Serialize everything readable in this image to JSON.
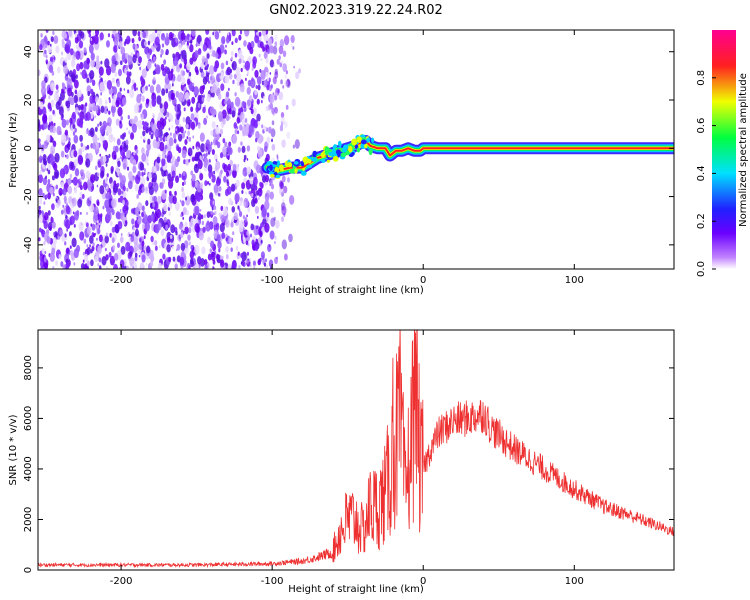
{
  "title": "GN02.2023.319.22.24.R02",
  "chart_data": [
    {
      "type": "heatmap",
      "name": "spectrogram",
      "xlabel": "Height of straight line (km)",
      "ylabel": "Frequency (Hz)",
      "xlim": [
        -255,
        166
      ],
      "ylim": [
        -50,
        49
      ],
      "xticks": [
        "-200",
        "-100",
        "0",
        "100"
      ],
      "yticks": [
        "-40",
        "-20",
        "0",
        "20",
        "40"
      ],
      "colorbar": {
        "label": "Normalized spectral amplitude",
        "range": [
          0,
          1
        ],
        "ticks": [
          "0.0",
          "0.2",
          "0.4",
          "0.6",
          "0.8"
        ],
        "colormap": [
          "#ffffff",
          "#8a00ff",
          "#2020ff",
          "#00e0ff",
          "#00ff40",
          "#f0ff00",
          "#ff2020",
          "#ff0090"
        ]
      },
      "noise_region_x": [
        -255,
        -80
      ],
      "signal_track": {
        "x": [
          -103,
          -95,
          -88,
          -80,
          -75,
          -70,
          -65,
          -60,
          -55,
          -50,
          -45,
          -42,
          -38,
          -35,
          -30,
          -25,
          -22,
          -18,
          -14,
          -10,
          -6,
          -2,
          0,
          10,
          40,
          80,
          120,
          166
        ],
        "freq": [
          -8,
          -9,
          -8,
          -8,
          -6,
          -4,
          -3,
          -2,
          -1,
          0,
          1,
          2,
          3,
          1,
          0,
          0,
          -3,
          -1,
          -1,
          0,
          -1,
          -1,
          0,
          0,
          0,
          0,
          0,
          0
        ]
      }
    },
    {
      "type": "line",
      "name": "snr",
      "xlabel": "Height of straight line (km)",
      "ylabel": "SNR (10 * v/v)",
      "xlim": [
        -255,
        166
      ],
      "ylim": [
        0,
        9500
      ],
      "xticks": [
        "-200",
        "-100",
        "0",
        "100"
      ],
      "yticks": [
        "0",
        "2000",
        "4000",
        "6000",
        "8000"
      ],
      "color": "#ee3030",
      "envelope": {
        "x": [
          -255,
          -150,
          -100,
          -80,
          -70,
          -60,
          -55,
          -50,
          -45,
          -40,
          -35,
          -30,
          -25,
          -20,
          -15,
          -12,
          -8,
          -5,
          -2,
          0,
          5,
          10,
          20,
          30,
          40,
          45,
          60,
          80,
          100,
          120,
          140,
          166
        ],
        "y": [
          200,
          200,
          250,
          350,
          500,
          700,
          1500,
          2000,
          2000,
          1500,
          2500,
          2500,
          3000,
          4500,
          6000,
          3000,
          5000,
          7500,
          4000,
          4000,
          4800,
          5400,
          5900,
          6000,
          6200,
          5600,
          4800,
          4000,
          3200,
          2500,
          2100,
          1500
        ]
      },
      "peaks": [
        {
          "x": -20,
          "y": 8400
        },
        {
          "x": -15,
          "y": 7500
        },
        {
          "x": -5,
          "y": 9400
        }
      ]
    }
  ]
}
